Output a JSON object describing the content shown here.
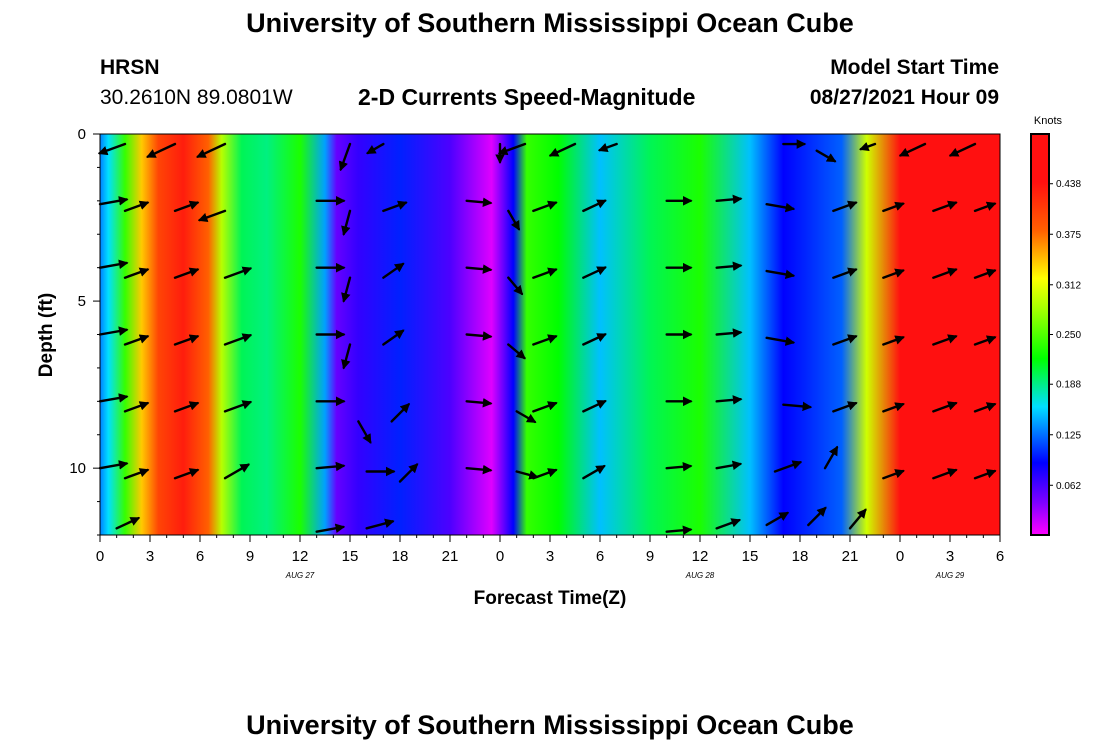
{
  "header": {
    "title": "University of Southern Mississippi Ocean Cube",
    "station": "HRSN",
    "coords": "30.2610N  89.0801W",
    "subtitle": "2-D Currents Speed-Magnitude",
    "model_start_label": "Model Start Time",
    "model_start_value": "08/27/2021 Hour 09"
  },
  "footer": {
    "title": "University of Southern Mississippi Ocean Cube"
  },
  "colorbar": {
    "unit": "Knots",
    "ticks": [
      "0.438",
      "0.375",
      "0.312",
      "0.250",
      "0.188",
      "0.125",
      "0.062"
    ],
    "tick_values": [
      0.438,
      0.375,
      0.312,
      0.25,
      0.188,
      0.125,
      0.062
    ],
    "range": [
      0.0,
      0.5
    ],
    "colors": {
      "magenta": "#ff00ff",
      "violet": "#8000ff",
      "blue": "#0000ff",
      "cyan": "#00e0ff",
      "green": "#00ff00",
      "lime": "#a0ff00",
      "yellow": "#ffff00",
      "orange": "#ff6000",
      "red": "#ff1010"
    }
  },
  "chart_data": {
    "type": "heatmap",
    "title": "2-D Currents Speed-Magnitude",
    "xlabel": "Forecast Time(Z)",
    "ylabel": "Depth (ft)",
    "x_range_hours": [
      0,
      54
    ],
    "ylim": [
      0,
      12
    ],
    "y_ticks": [
      "0",
      "5",
      "10"
    ],
    "y_tick_values": [
      0,
      5,
      10
    ],
    "x_tick_labels": [
      "0",
      "3",
      "6",
      "9",
      "12",
      "15",
      "18",
      "21",
      "0",
      "3",
      "6",
      "9",
      "12",
      "15",
      "18",
      "21",
      "0",
      "3",
      "6"
    ],
    "date_labels": [
      {
        "label": "AUG 27",
        "hour": 12
      },
      {
        "label": "AUG 28",
        "hour": 36
      },
      {
        "label": "AUG 29",
        "hour": 51
      }
    ],
    "depths_ft": [
      0,
      1,
      2,
      3,
      4,
      5,
      6,
      7,
      8,
      9,
      10,
      11,
      12
    ],
    "speed_profile_knots": [
      {
        "hour": 0,
        "speed": 0.13
      },
      {
        "hour": 0.5,
        "speed": 0.16
      },
      {
        "hour": 1.5,
        "speed": 0.24
      },
      {
        "hour": 2.5,
        "speed": 0.34
      },
      {
        "hour": 3.5,
        "speed": 0.4
      },
      {
        "hour": 5,
        "speed": 0.43
      },
      {
        "hour": 6.5,
        "speed": 0.38
      },
      {
        "hour": 7.3,
        "speed": 0.29
      },
      {
        "hour": 8.5,
        "speed": 0.2
      },
      {
        "hour": 10,
        "speed": 0.19
      },
      {
        "hour": 12,
        "speed": 0.23
      },
      {
        "hour": 13.5,
        "speed": 0.14
      },
      {
        "hour": 14.2,
        "speed": 0.05
      },
      {
        "hour": 15.5,
        "speed": 0.07
      },
      {
        "hour": 18,
        "speed": 0.1
      },
      {
        "hour": 21,
        "speed": 0.06
      },
      {
        "hour": 23.5,
        "speed": 0.01
      },
      {
        "hour": 24.8,
        "speed": 0.09
      },
      {
        "hour": 25.6,
        "speed": 0.24
      },
      {
        "hour": 27.5,
        "speed": 0.22
      },
      {
        "hour": 30,
        "speed": 0.15
      },
      {
        "hour": 33,
        "speed": 0.2
      },
      {
        "hour": 36,
        "speed": 0.23
      },
      {
        "hour": 39,
        "speed": 0.15
      },
      {
        "hour": 41,
        "speed": 0.09
      },
      {
        "hour": 44.5,
        "speed": 0.12
      },
      {
        "hour": 46,
        "speed": 0.3
      },
      {
        "hour": 48,
        "speed": 0.44
      },
      {
        "hour": 54,
        "speed": 0.47
      }
    ],
    "vectors": [
      {
        "hour": 1.5,
        "depth": 0.3,
        "angle": 200,
        "len": 0.9
      },
      {
        "hour": 4.5,
        "depth": 0.3,
        "angle": 205,
        "len": 1.0
      },
      {
        "hour": 7.5,
        "depth": 0.3,
        "angle": 205,
        "len": 1.0
      },
      {
        "hour": 15,
        "depth": 0.3,
        "angle": 250,
        "len": 0.9
      },
      {
        "hour": 17,
        "depth": 0.3,
        "angle": 210,
        "len": 0.6
      },
      {
        "hour": 24,
        "depth": 0.3,
        "angle": 270,
        "len": 0.6
      },
      {
        "hour": 25.5,
        "depth": 0.3,
        "angle": 200,
        "len": 0.9
      },
      {
        "hour": 28.5,
        "depth": 0.3,
        "angle": 205,
        "len": 0.9
      },
      {
        "hour": 31,
        "depth": 0.3,
        "angle": 200,
        "len": 0.6
      },
      {
        "hour": 41,
        "depth": 0.3,
        "angle": 0,
        "len": 0.7
      },
      {
        "hour": 43,
        "depth": 0.5,
        "angle": 330,
        "len": 0.7
      },
      {
        "hour": 46.5,
        "depth": 0.3,
        "angle": 200,
        "len": 0.5
      },
      {
        "hour": 49.5,
        "depth": 0.3,
        "angle": 205,
        "len": 0.9
      },
      {
        "hour": 52.5,
        "depth": 0.3,
        "angle": 205,
        "len": 0.9
      },
      {
        "hour": 0,
        "depth": 2.1,
        "angle": 10,
        "len": 0.9
      },
      {
        "hour": 1.5,
        "depth": 2.3,
        "angle": 20,
        "len": 0.8
      },
      {
        "hour": 4.5,
        "depth": 2.3,
        "angle": 20,
        "len": 0.8
      },
      {
        "hour": 7.5,
        "depth": 2.3,
        "angle": 200,
        "len": 0.9
      },
      {
        "hour": 13,
        "depth": 2.0,
        "angle": 0,
        "len": 0.9
      },
      {
        "hour": 15,
        "depth": 2.3,
        "angle": 255,
        "len": 0.8
      },
      {
        "hour": 17,
        "depth": 2.3,
        "angle": 20,
        "len": 0.8
      },
      {
        "hour": 22,
        "depth": 2.0,
        "angle": 355,
        "len": 0.8
      },
      {
        "hour": 24.5,
        "depth": 2.3,
        "angle": 300,
        "len": 0.7
      },
      {
        "hour": 26,
        "depth": 2.3,
        "angle": 20,
        "len": 0.8
      },
      {
        "hour": 29,
        "depth": 2.3,
        "angle": 25,
        "len": 0.8
      },
      {
        "hour": 34,
        "depth": 2.0,
        "angle": 0,
        "len": 0.8
      },
      {
        "hour": 37,
        "depth": 2.0,
        "angle": 5,
        "len": 0.8
      },
      {
        "hour": 40,
        "depth": 2.1,
        "angle": 350,
        "len": 0.9
      },
      {
        "hour": 44,
        "depth": 2.3,
        "angle": 20,
        "len": 0.8
      },
      {
        "hour": 47,
        "depth": 2.3,
        "angle": 20,
        "len": 0.7
      },
      {
        "hour": 50,
        "depth": 2.3,
        "angle": 20,
        "len": 0.8
      },
      {
        "hour": 52.5,
        "depth": 2.3,
        "angle": 20,
        "len": 0.7
      },
      {
        "hour": 0,
        "depth": 4.0,
        "angle": 10,
        "len": 0.9
      },
      {
        "hour": 1.5,
        "depth": 4.3,
        "angle": 20,
        "len": 0.8
      },
      {
        "hour": 4.5,
        "depth": 4.3,
        "angle": 20,
        "len": 0.8
      },
      {
        "hour": 7.5,
        "depth": 4.3,
        "angle": 20,
        "len": 0.9
      },
      {
        "hour": 13,
        "depth": 4.0,
        "angle": 0,
        "len": 0.9
      },
      {
        "hour": 15,
        "depth": 4.3,
        "angle": 255,
        "len": 0.8
      },
      {
        "hour": 17,
        "depth": 4.3,
        "angle": 35,
        "len": 0.8
      },
      {
        "hour": 22,
        "depth": 4.0,
        "angle": 355,
        "len": 0.8
      },
      {
        "hour": 24.5,
        "depth": 4.3,
        "angle": 310,
        "len": 0.7
      },
      {
        "hour": 26,
        "depth": 4.3,
        "angle": 20,
        "len": 0.8
      },
      {
        "hour": 29,
        "depth": 4.3,
        "angle": 25,
        "len": 0.8
      },
      {
        "hour": 34,
        "depth": 4.0,
        "angle": 0,
        "len": 0.8
      },
      {
        "hour": 37,
        "depth": 4.0,
        "angle": 5,
        "len": 0.8
      },
      {
        "hour": 40,
        "depth": 4.1,
        "angle": 350,
        "len": 0.9
      },
      {
        "hour": 44,
        "depth": 4.3,
        "angle": 20,
        "len": 0.8
      },
      {
        "hour": 47,
        "depth": 4.3,
        "angle": 20,
        "len": 0.7
      },
      {
        "hour": 50,
        "depth": 4.3,
        "angle": 20,
        "len": 0.8
      },
      {
        "hour": 52.5,
        "depth": 4.3,
        "angle": 20,
        "len": 0.7
      },
      {
        "hour": 0,
        "depth": 6.0,
        "angle": 10,
        "len": 0.9
      },
      {
        "hour": 1.5,
        "depth": 6.3,
        "angle": 20,
        "len": 0.8
      },
      {
        "hour": 4.5,
        "depth": 6.3,
        "angle": 20,
        "len": 0.8
      },
      {
        "hour": 7.5,
        "depth": 6.3,
        "angle": 20,
        "len": 0.9
      },
      {
        "hour": 13,
        "depth": 6.0,
        "angle": 0,
        "len": 0.9
      },
      {
        "hour": 15,
        "depth": 6.3,
        "angle": 255,
        "len": 0.8
      },
      {
        "hour": 17,
        "depth": 6.3,
        "angle": 35,
        "len": 0.8
      },
      {
        "hour": 22,
        "depth": 6.0,
        "angle": 355,
        "len": 0.8
      },
      {
        "hour": 24.5,
        "depth": 6.3,
        "angle": 320,
        "len": 0.7
      },
      {
        "hour": 26,
        "depth": 6.3,
        "angle": 20,
        "len": 0.8
      },
      {
        "hour": 29,
        "depth": 6.3,
        "angle": 25,
        "len": 0.8
      },
      {
        "hour": 34,
        "depth": 6.0,
        "angle": 0,
        "len": 0.8
      },
      {
        "hour": 37,
        "depth": 6.0,
        "angle": 5,
        "len": 0.8
      },
      {
        "hour": 40,
        "depth": 6.1,
        "angle": 350,
        "len": 0.9
      },
      {
        "hour": 44,
        "depth": 6.3,
        "angle": 20,
        "len": 0.8
      },
      {
        "hour": 47,
        "depth": 6.3,
        "angle": 20,
        "len": 0.7
      },
      {
        "hour": 50,
        "depth": 6.3,
        "angle": 20,
        "len": 0.8
      },
      {
        "hour": 52.5,
        "depth": 6.3,
        "angle": 20,
        "len": 0.7
      },
      {
        "hour": 0,
        "depth": 8.0,
        "angle": 10,
        "len": 0.9
      },
      {
        "hour": 1.5,
        "depth": 8.3,
        "angle": 20,
        "len": 0.8
      },
      {
        "hour": 4.5,
        "depth": 8.3,
        "angle": 20,
        "len": 0.8
      },
      {
        "hour": 7.5,
        "depth": 8.3,
        "angle": 20,
        "len": 0.9
      },
      {
        "hour": 13,
        "depth": 8.0,
        "angle": 0,
        "len": 0.9
      },
      {
        "hour": 15.5,
        "depth": 8.6,
        "angle": 300,
        "len": 0.8
      },
      {
        "hour": 17.5,
        "depth": 8.6,
        "angle": 45,
        "len": 0.8
      },
      {
        "hour": 22,
        "depth": 8.0,
        "angle": 355,
        "len": 0.8
      },
      {
        "hour": 25,
        "depth": 8.3,
        "angle": 330,
        "len": 0.7
      },
      {
        "hour": 26,
        "depth": 8.3,
        "angle": 20,
        "len": 0.8
      },
      {
        "hour": 29,
        "depth": 8.3,
        "angle": 25,
        "len": 0.8
      },
      {
        "hour": 34,
        "depth": 8.0,
        "angle": 0,
        "len": 0.8
      },
      {
        "hour": 37,
        "depth": 8.0,
        "angle": 5,
        "len": 0.8
      },
      {
        "hour": 41,
        "depth": 8.1,
        "angle": 355,
        "len": 0.9
      },
      {
        "hour": 44,
        "depth": 8.3,
        "angle": 20,
        "len": 0.8
      },
      {
        "hour": 47,
        "depth": 8.3,
        "angle": 20,
        "len": 0.7
      },
      {
        "hour": 50,
        "depth": 8.3,
        "angle": 20,
        "len": 0.8
      },
      {
        "hour": 52.5,
        "depth": 8.3,
        "angle": 20,
        "len": 0.7
      },
      {
        "hour": 0,
        "depth": 10.0,
        "angle": 10,
        "len": 0.9
      },
      {
        "hour": 1.5,
        "depth": 10.3,
        "angle": 20,
        "len": 0.8
      },
      {
        "hour": 4.5,
        "depth": 10.3,
        "angle": 20,
        "len": 0.8
      },
      {
        "hour": 7.5,
        "depth": 10.3,
        "angle": 30,
        "len": 0.9
      },
      {
        "hour": 13,
        "depth": 10.0,
        "angle": 5,
        "len": 0.9
      },
      {
        "hour": 16,
        "depth": 10.1,
        "angle": 0,
        "len": 0.9
      },
      {
        "hour": 18,
        "depth": 10.4,
        "angle": 45,
        "len": 0.8
      },
      {
        "hour": 22,
        "depth": 10.0,
        "angle": 355,
        "len": 0.8
      },
      {
        "hour": 25,
        "depth": 10.1,
        "angle": 345,
        "len": 0.7
      },
      {
        "hour": 26,
        "depth": 10.3,
        "angle": 20,
        "len": 0.8
      },
      {
        "hour": 29,
        "depth": 10.3,
        "angle": 30,
        "len": 0.8
      },
      {
        "hour": 34,
        "depth": 10.0,
        "angle": 5,
        "len": 0.8
      },
      {
        "hour": 37,
        "depth": 10.0,
        "angle": 10,
        "len": 0.8
      },
      {
        "hour": 40.5,
        "depth": 10.1,
        "angle": 20,
        "len": 0.9
      },
      {
        "hour": 43.5,
        "depth": 10.0,
        "angle": 60,
        "len": 0.8
      },
      {
        "hour": 47,
        "depth": 10.3,
        "angle": 20,
        "len": 0.7
      },
      {
        "hour": 50,
        "depth": 10.3,
        "angle": 20,
        "len": 0.8
      },
      {
        "hour": 52.5,
        "depth": 10.3,
        "angle": 20,
        "len": 0.7
      },
      {
        "hour": 1,
        "depth": 11.8,
        "angle": 25,
        "len": 0.8
      },
      {
        "hour": 13,
        "depth": 11.9,
        "angle": 10,
        "len": 0.9
      },
      {
        "hour": 16,
        "depth": 11.8,
        "angle": 15,
        "len": 0.9
      },
      {
        "hour": 34,
        "depth": 11.9,
        "angle": 5,
        "len": 0.8
      },
      {
        "hour": 37,
        "depth": 11.8,
        "angle": 20,
        "len": 0.8
      },
      {
        "hour": 40,
        "depth": 11.7,
        "angle": 30,
        "len": 0.8
      },
      {
        "hour": 42.5,
        "depth": 11.7,
        "angle": 45,
        "len": 0.8
      },
      {
        "hour": 45,
        "depth": 11.8,
        "angle": 50,
        "len": 0.8
      }
    ]
  }
}
